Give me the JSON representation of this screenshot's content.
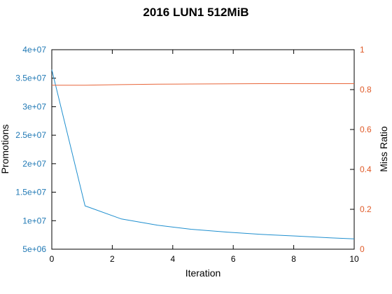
{
  "chart_data": {
    "type": "line",
    "title": "2016 LUN1 512MiB",
    "xlabel": "Iteration",
    "ylabel_left": "Promotions",
    "ylabel_right": "Miss Ratio",
    "xlim": [
      0,
      10
    ],
    "ylim_left": [
      5000000,
      40000000
    ],
    "ylim_right": [
      0,
      1
    ],
    "x_ticks": [
      "0",
      "2",
      "4",
      "6",
      "8",
      "10"
    ],
    "y_left_ticks": [
      "5e+06",
      "1e+07",
      "1.5e+07",
      "2e+07",
      "2.5e+07",
      "3e+07",
      "3.5e+07",
      "4e+07"
    ],
    "y_right_ticks": [
      "0",
      "0.2",
      "0.4",
      "0.6",
      "0.8",
      "1"
    ],
    "grid": false,
    "colors": {
      "promotions": "#1f8fcf",
      "miss_ratio": "#e8663a",
      "left_axis": "#1f78b4",
      "right_axis": "#e05a28"
    },
    "series": [
      {
        "axis": "left",
        "x": [
          0,
          1.1,
          2.3,
          3.5,
          4.6,
          5.8,
          6.9,
          8.1,
          9.2,
          10
        ],
        "values": [
          36500000,
          12600000,
          10300000,
          9200000,
          8500000,
          8000000,
          7600000,
          7300000,
          7000000,
          6800000
        ]
      },
      {
        "axis": "right",
        "x": [
          0,
          1.1,
          2.3,
          3.5,
          4.6,
          5.8,
          6.9,
          8.1,
          9.2,
          10
        ],
        "values": [
          0.822,
          0.822,
          0.825,
          0.827,
          0.828,
          0.829,
          0.83,
          0.83,
          0.83,
          0.83
        ]
      }
    ]
  }
}
